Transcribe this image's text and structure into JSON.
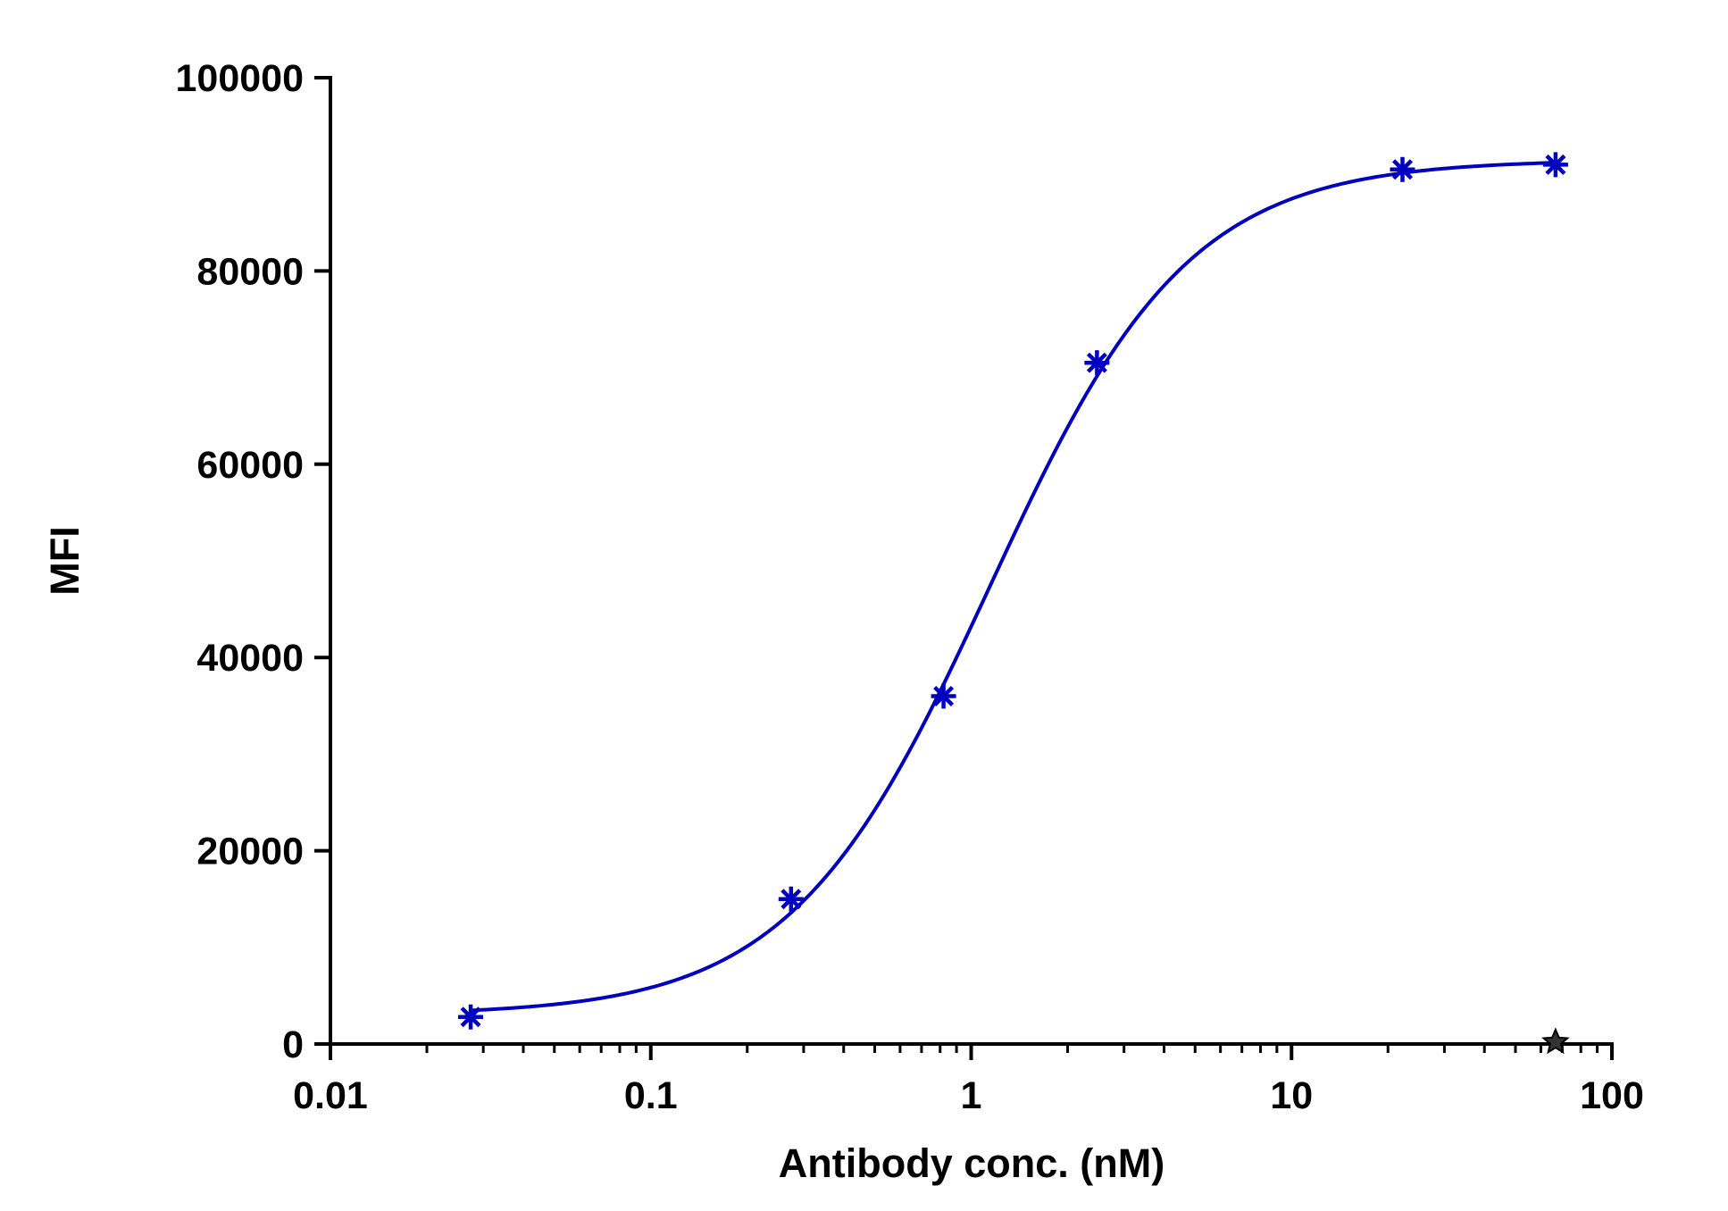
{
  "chart_data": {
    "type": "scatter",
    "title": "",
    "xlabel": "Antibody conc. (nM)",
    "ylabel": "MFI",
    "x_scale": "log",
    "xlim": [
      0.01,
      100
    ],
    "ylim": [
      0,
      100000
    ],
    "x_tick_labels": [
      "0.01",
      "0.1",
      "1",
      "10",
      "100"
    ],
    "y_tick_labels": [
      "0",
      "20000",
      "40000",
      "60000",
      "80000",
      "100000"
    ],
    "grid": false,
    "legend": "none",
    "series": [
      {
        "marker": "asterisk",
        "color": "#0000c0",
        "fit": "four-parameter logistic",
        "x": [
          0.0274,
          0.274,
          0.82,
          2.47,
          22.2,
          66.7
        ],
        "y": [
          2800,
          15000,
          36000,
          70500,
          90500,
          91000
        ]
      },
      {
        "marker": "star",
        "color": "#333333",
        "x": [
          66.7
        ],
        "y": [
          200
        ]
      }
    ]
  }
}
